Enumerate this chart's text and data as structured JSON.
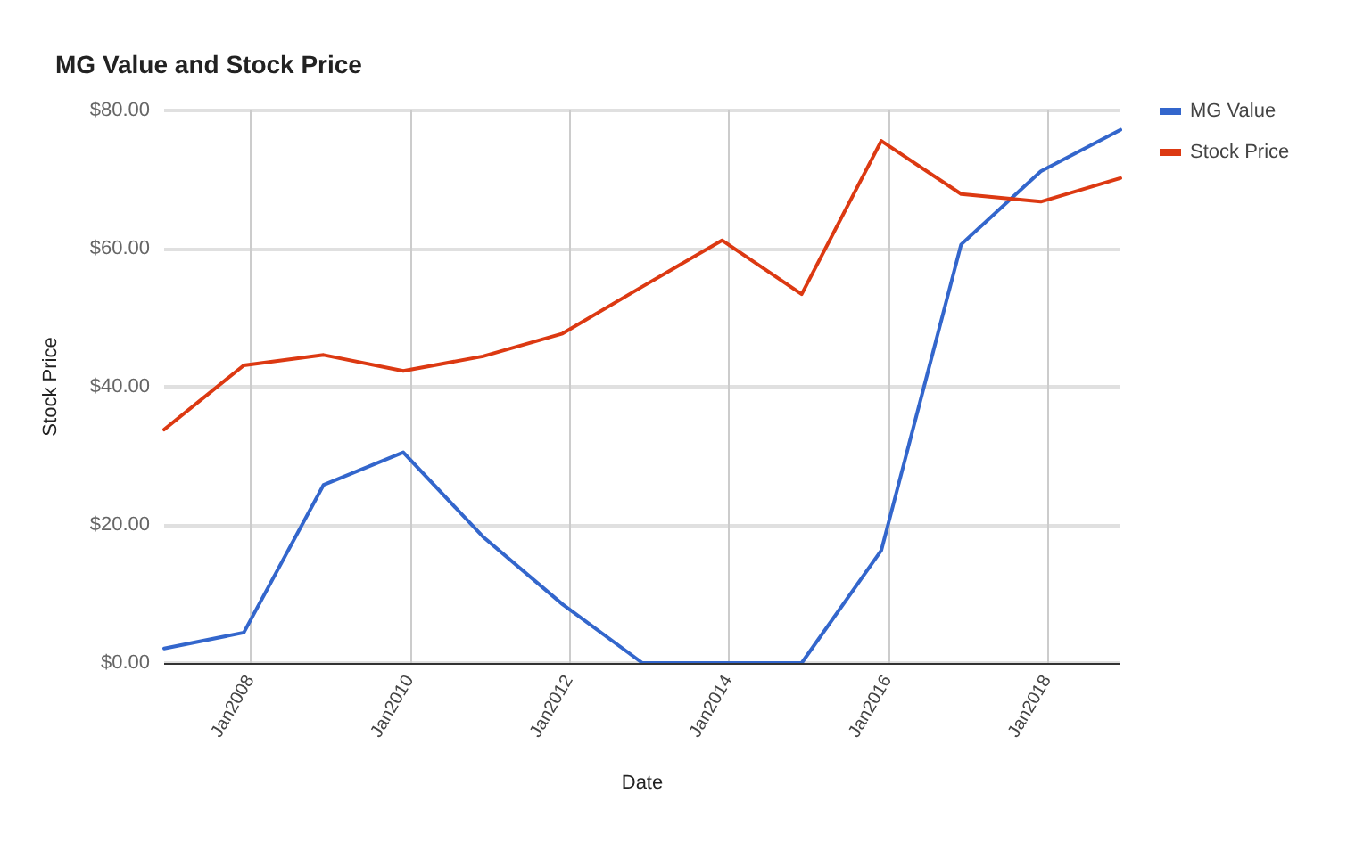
{
  "chart_data": {
    "type": "line",
    "title": "MG Value and Stock Price",
    "xlabel": "Date",
    "ylabel": "Stock Price",
    "x": [
      "2006-12",
      "2007-12",
      "2008-12",
      "2009-12",
      "2010-12",
      "2011-12",
      "2012-12",
      "2013-12",
      "2014-12",
      "2015-12",
      "2016-12",
      "2017-12",
      "2018-12"
    ],
    "series": [
      {
        "name": "MG Value",
        "color": "#3366cc",
        "values": [
          2.1,
          4.4,
          25.8,
          30.5,
          18.3,
          8.5,
          0,
          0,
          0,
          16.3,
          60.6,
          71.2,
          77.2
        ]
      },
      {
        "name": "Stock Price",
        "color": "#dc3912",
        "values": [
          33.8,
          43.1,
          44.6,
          42.3,
          44.4,
          47.7,
          54.5,
          61.2,
          53.4,
          75.6,
          67.9,
          66.8,
          70.2
        ]
      }
    ],
    "xlim": [
      "2006-12",
      "2018-12"
    ],
    "xticks": [
      {
        "value": "2008-01",
        "label": "Jan2008"
      },
      {
        "value": "2010-01",
        "label": "Jan2010"
      },
      {
        "value": "2012-01",
        "label": "Jan2012"
      },
      {
        "value": "2014-01",
        "label": "Jan2014"
      },
      {
        "value": "2016-01",
        "label": "Jan2016"
      },
      {
        "value": "2018-01",
        "label": "Jan2018"
      }
    ],
    "ylim": [
      0,
      80
    ],
    "yticks": [
      {
        "value": 0,
        "label": "$0.00"
      },
      {
        "value": 20,
        "label": "$20.00"
      },
      {
        "value": 40,
        "label": "$40.00"
      },
      {
        "value": 60,
        "label": "$60.00"
      },
      {
        "value": 80,
        "label": "$80.00"
      }
    ],
    "grid": true,
    "legend": "top right",
    "marker": "none",
    "line_style": "solid"
  }
}
